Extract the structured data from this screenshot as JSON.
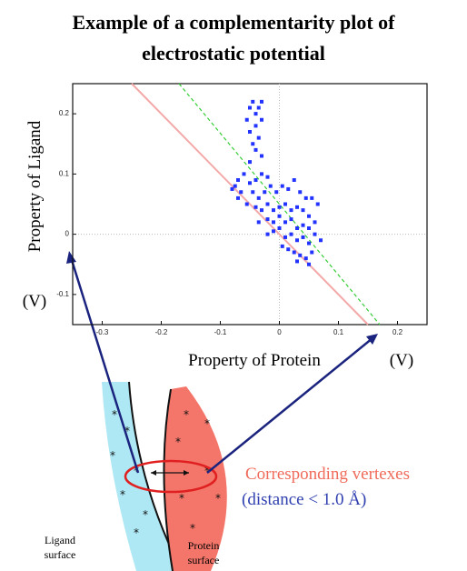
{
  "chart_data": {
    "type": "scatter",
    "title": [
      "Example of a complementarity plot of",
      "electrostatic potential"
    ],
    "x_label": "Property of Protein",
    "x_unit": "(V)",
    "y_label": "Property of Ligand",
    "y_unit": "(V)",
    "xlim": [
      -0.35,
      0.25
    ],
    "ylim": [
      -0.15,
      0.25
    ],
    "xticks": [
      -0.3,
      -0.2,
      -0.1,
      0,
      0.1,
      0.2
    ],
    "yticks": [
      -0.1,
      0,
      0.1,
      0.2
    ],
    "zero_lines": true,
    "series": [
      {
        "type": "scatter",
        "color": "#2233ff",
        "x": [
          -0.05,
          -0.045,
          -0.04,
          -0.035,
          -0.03,
          -0.055,
          -0.04,
          -0.03,
          -0.05,
          -0.035,
          -0.045,
          -0.04,
          -0.03,
          -0.05,
          -0.07,
          -0.06,
          -0.075,
          -0.065,
          -0.08,
          -0.07,
          -0.05,
          -0.04,
          -0.03,
          -0.02,
          -0.045,
          -0.035,
          -0.025,
          -0.015,
          -0.005,
          0.005,
          0.015,
          0.025,
          0.035,
          0.045,
          -0.055,
          -0.04,
          -0.03,
          -0.02,
          -0.01,
          0,
          0.01,
          0.02,
          0.03,
          0.04,
          0.05,
          -0.035,
          -0.02,
          -0.01,
          0,
          0.01,
          0.02,
          0.03,
          0.04,
          0.05,
          0.06,
          -0.02,
          -0.01,
          0,
          0.01,
          0.02,
          0.03,
          0.04,
          0.05,
          0.055,
          0.005,
          0.015,
          0.025,
          0.035,
          0.045,
          0.05,
          0.03,
          0.06,
          0.065,
          0.055,
          0.07
        ],
        "values": [
          0.21,
          0.22,
          0.2,
          0.21,
          0.22,
          0.19,
          0.18,
          0.19,
          0.17,
          0.16,
          0.15,
          0.14,
          0.13,
          0.12,
          0.09,
          0.1,
          0.08,
          0.07,
          0.075,
          0.06,
          0.085,
          0.09,
          0.1,
          0.095,
          0.07,
          0.06,
          0.07,
          0.08,
          0.07,
          0.08,
          0.075,
          0.09,
          0.07,
          0.06,
          0.05,
          0.045,
          0.04,
          0.05,
          0.04,
          0.045,
          0.05,
          0.04,
          0.045,
          0.04,
          0.03,
          0.02,
          0.025,
          0.02,
          0.03,
          0.02,
          0.025,
          0.01,
          0.015,
          0.01,
          0,
          0,
          0.005,
          0.01,
          -0.005,
          0,
          -0.01,
          -0.005,
          -0.015,
          -0.03,
          -0.02,
          -0.025,
          -0.03,
          -0.035,
          -0.04,
          -0.05,
          -0.045,
          0.02,
          0.05,
          0.06,
          -0.01
        ]
      },
      {
        "type": "line",
        "color": "#f4a8a8",
        "x": [
          -0.25,
          0.15
        ],
        "values": [
          0.25,
          -0.15
        ]
      },
      {
        "type": "line",
        "color": "#33cc33",
        "dashed": true,
        "x": [
          -0.17,
          0.17
        ],
        "values": [
          0.25,
          -0.15
        ]
      }
    ]
  },
  "diagram": {
    "corresponding_label": "Corresponding vertexes",
    "distance_label": "(distance < 1.0 Å)",
    "ligand_label": [
      "Ligand",
      "surface"
    ],
    "protein_label": [
      "Protein",
      "surface"
    ]
  }
}
